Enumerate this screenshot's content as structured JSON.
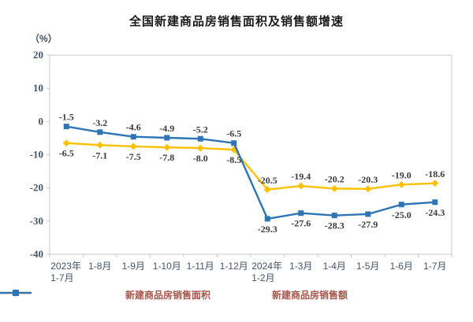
{
  "chart_data": {
    "type": "line",
    "title": "全国新建商品房销售面积及销售额增速",
    "unit_label": "（%）",
    "ylim": [
      -40,
      20
    ],
    "yticks": [
      20,
      10,
      0,
      -10,
      -20,
      -30,
      -40
    ],
    "grid": false,
    "legend_position": "bottom",
    "categories": [
      [
        "2023年",
        "1-7月"
      ],
      [
        "1-8月"
      ],
      [
        "1-9月"
      ],
      [
        "1-10月"
      ],
      [
        "1-11月"
      ],
      [
        "1-12月"
      ],
      [
        "2024年",
        "1-2月"
      ],
      [
        "1-3月"
      ],
      [
        "1-4月"
      ],
      [
        "1-5月"
      ],
      [
        "1-6月"
      ],
      [
        "1-7月"
      ]
    ],
    "series": [
      {
        "name": "新建商品房销售面积",
        "color": "#FFC000",
        "marker": "diamond",
        "values": [
          -6.5,
          -7.1,
          -7.5,
          -7.8,
          -8.0,
          -8.5,
          -20.5,
          -19.4,
          -20.2,
          -20.3,
          -19.0,
          -18.6
        ]
      },
      {
        "name": "新建商品房销售额",
        "color": "#2E75B6",
        "marker": "square",
        "values": [
          -1.5,
          -3.2,
          -4.6,
          -4.9,
          -5.2,
          -6.5,
          -29.3,
          -27.6,
          -28.3,
          -27.9,
          -25.0,
          -24.3
        ]
      }
    ],
    "colors": {
      "axis_line": "#c9c9c9",
      "tick_label": "#44546A",
      "data_label": "#3a3a3a",
      "legend_text": "#a6554a",
      "title_text": "#1a1a1a"
    }
  }
}
